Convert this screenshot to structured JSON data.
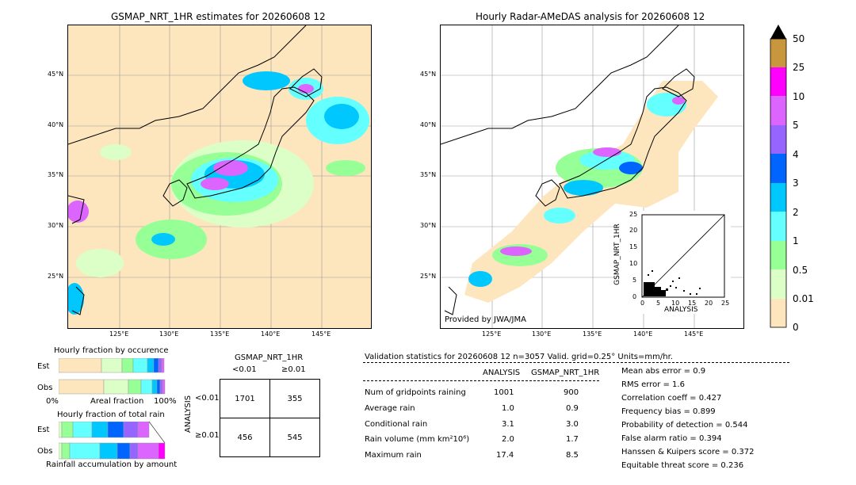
{
  "left_map": {
    "title": "GSMAP_NRT_1HR estimates for 20260608 12",
    "lat_ticks": [
      "45°N",
      "40°N",
      "35°N",
      "30°N",
      "25°N"
    ],
    "lon_ticks": [
      "125°E",
      "130°E",
      "135°E",
      "140°E",
      "145°E"
    ]
  },
  "right_map": {
    "title": "Hourly Radar-AMeDAS analysis for 20260608 12",
    "lat_ticks": [
      "45°N",
      "40°N",
      "35°N",
      "30°N",
      "25°N"
    ],
    "lon_ticks": [
      "125°E",
      "130°E",
      "135°E",
      "140°E",
      "145°E"
    ],
    "credit": "Provided by JWA/JMA"
  },
  "scatter_inset": {
    "ylabel": "GSMAP_NRT_1HR",
    "xlabel": "ANALYSIS",
    "ticks": [
      "0",
      "5",
      "10",
      "15",
      "20",
      "25"
    ]
  },
  "colorbar": {
    "levels": [
      "50",
      "25",
      "10",
      "5",
      "4",
      "3",
      "2",
      "1",
      "0.5",
      "0.01",
      "0"
    ],
    "colors": [
      "#c8963c",
      "#ff00ff",
      "#dc64ff",
      "#9664ff",
      "#0064ff",
      "#00c8ff",
      "#64ffff",
      "#96ff96",
      "#dcffc8",
      "#fde6bd"
    ]
  },
  "occurrence": {
    "title": "Hourly fraction by occurence",
    "rows": [
      "Est",
      "Obs"
    ],
    "axis_left": "0%",
    "axis_mid": "Areal fraction",
    "axis_right": "100%"
  },
  "total_rain": {
    "title": "Hourly fraction of total rain",
    "rows": [
      "Est",
      "Obs"
    ],
    "footer": "Rainfall accumulation by amount"
  },
  "contingency": {
    "header": "GSMAP_NRT_1HR",
    "col_labels": [
      "<0.01",
      "≥0.01"
    ],
    "side_label": "ANALYSIS",
    "row_labels": [
      "<0.01",
      "≥0.01"
    ],
    "cells": [
      [
        "1701",
        "355"
      ],
      [
        "456",
        "545"
      ]
    ]
  },
  "validation": {
    "header": "Validation statistics for 20260608 12  n=3057 Valid. grid=0.25° Units=mm/hr.",
    "col_analysis": "ANALYSIS",
    "col_gsmap": "GSMAP_NRT_1HR",
    "rows": [
      {
        "label": "Num of gridpoints raining",
        "analysis": "1001",
        "gsmap": "900"
      },
      {
        "label": "Average rain",
        "analysis": "1.0",
        "gsmap": "0.9"
      },
      {
        "label": "Conditional rain",
        "analysis": "3.1",
        "gsmap": "3.0"
      },
      {
        "label": "Rain volume (mm km²10⁶)",
        "analysis": "2.0",
        "gsmap": "1.7"
      },
      {
        "label": "Maximum rain",
        "analysis": "17.4",
        "gsmap": "8.5"
      }
    ],
    "scores": [
      "Mean abs error =    0.9",
      "RMS error =    1.6",
      "Correlation coeff =  0.427",
      "Frequency bias =  0.899",
      "Probability of detection =  0.544",
      "False alarm ratio =  0.394",
      "Hanssen & Kuipers score =  0.372",
      "Equitable threat score =  0.236"
    ]
  },
  "chart_data": [
    {
      "type": "heatmap",
      "title": "GSMAP_NRT_1HR estimates for 20260608 12",
      "x_range": [
        120,
        150
      ],
      "y_range": [
        20,
        50
      ],
      "units": "mm/hr"
    },
    {
      "type": "heatmap",
      "title": "Hourly Radar-AMeDAS analysis for 20260608 12",
      "x_range": [
        120,
        150
      ],
      "y_range": [
        20,
        50
      ],
      "units": "mm/hr"
    },
    {
      "type": "scatter",
      "xlabel": "ANALYSIS",
      "ylabel": "GSMAP_NRT_1HR",
      "xlim": [
        0,
        25
      ],
      "ylim": [
        0,
        25
      ]
    },
    {
      "type": "table",
      "title": "GSMAP_NRT_1HR",
      "rows": [
        "<0.01",
        "≥0.01"
      ],
      "columns": [
        "<0.01",
        "≥0.01"
      ],
      "values": [
        [
          1701,
          355
        ],
        [
          456,
          545
        ]
      ]
    }
  ]
}
